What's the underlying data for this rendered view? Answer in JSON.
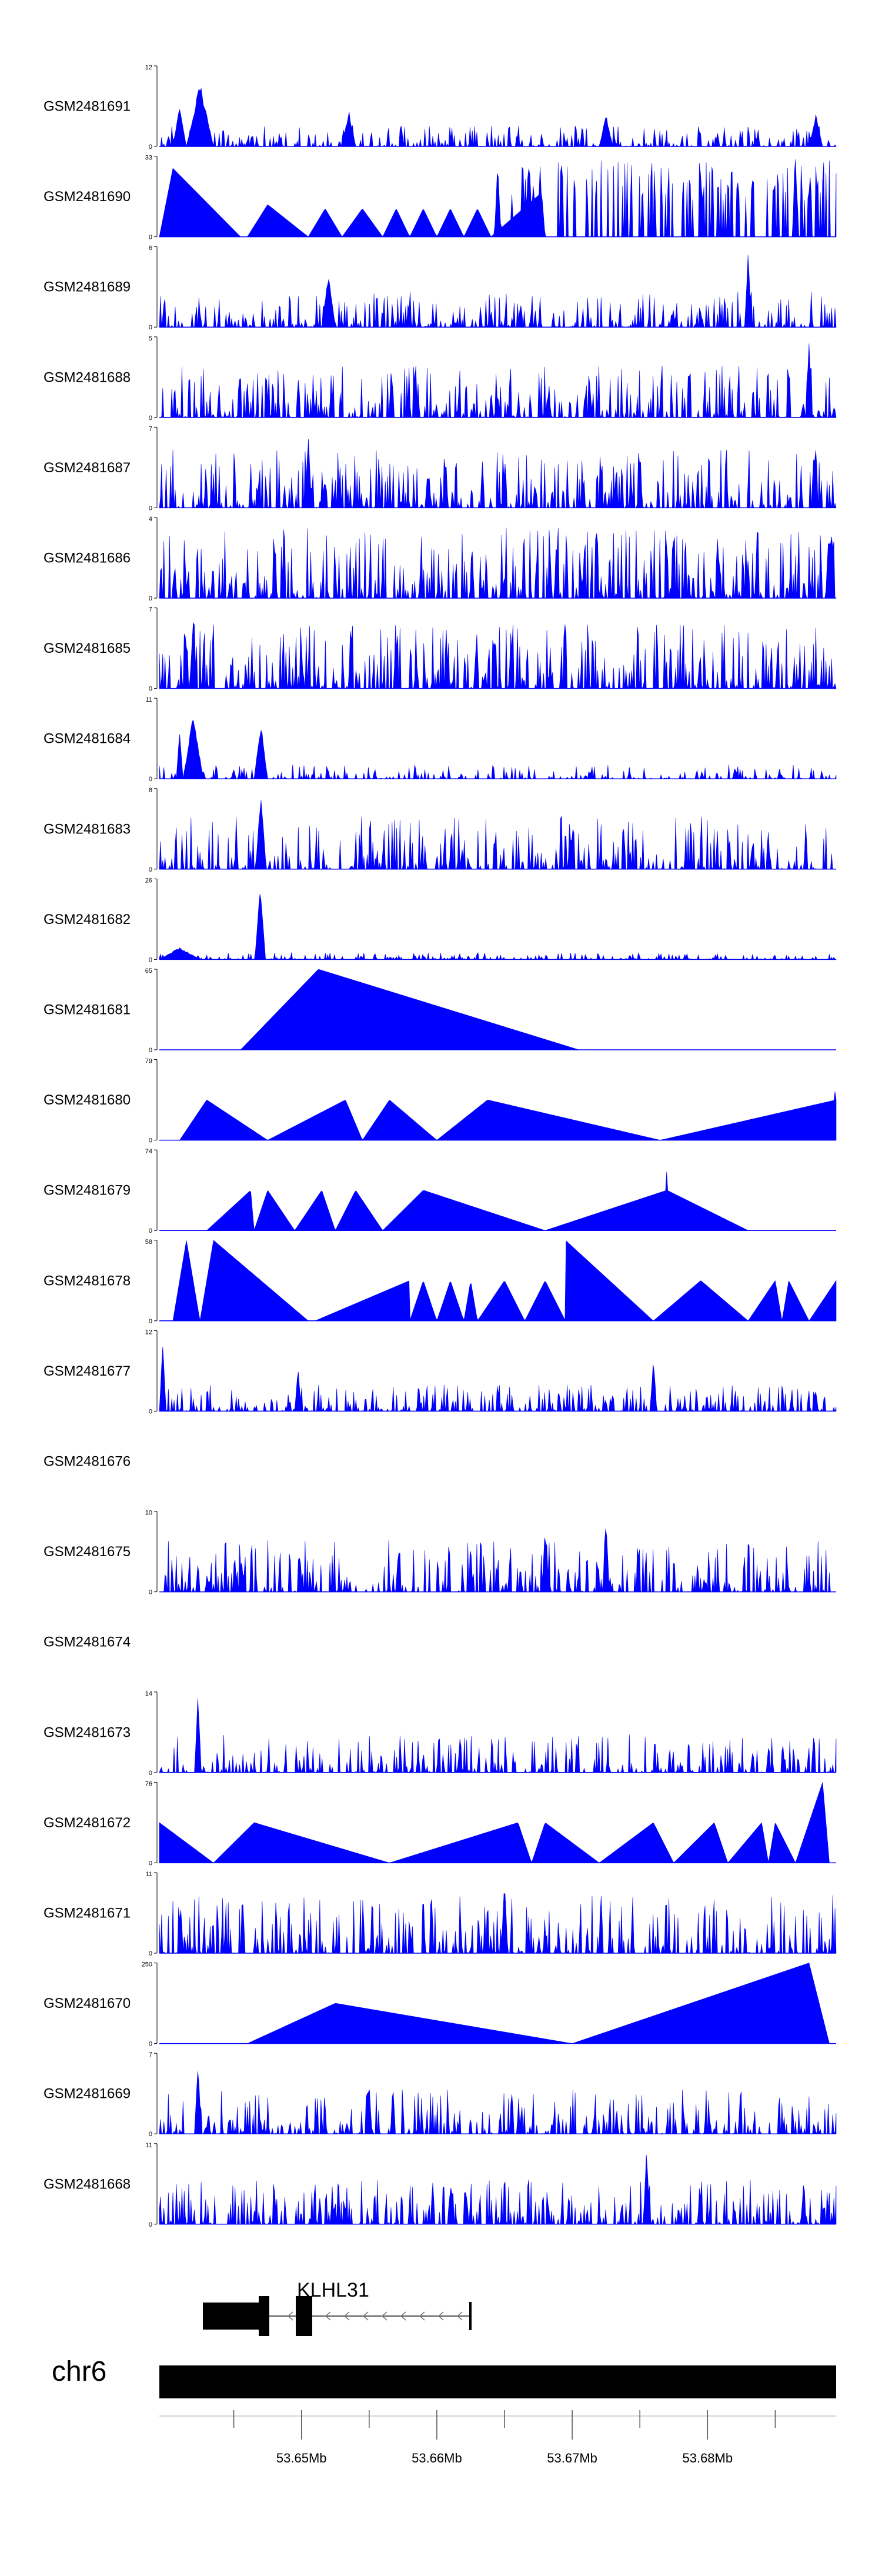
{
  "chart_data": {
    "type": "area",
    "title": "",
    "colors": {
      "signal": "#0000ff",
      "axis": "#000000",
      "gene": "#000000"
    },
    "tracks": [
      {
        "name": "GSM2481691",
        "ymax": "12",
        "ymin": "0",
        "style": "noise",
        "density": 0.55,
        "base": 0.12,
        "peaks": [
          [
            0.06,
            0.8,
            0.02
          ],
          [
            0.03,
            0.5,
            0.01
          ],
          [
            0.28,
            0.45,
            0.01
          ],
          [
            0.66,
            0.4,
            0.01
          ],
          [
            0.97,
            0.4,
            0.01
          ]
        ]
      },
      {
        "name": "GSM2481690",
        "ymax": "33",
        "ymin": "0",
        "style": "wedges",
        "wedges": [
          [
            0.0,
            0.12,
            0.02,
            0.85
          ],
          [
            0.13,
            0.22,
            0.16,
            0.4
          ],
          [
            0.22,
            0.27,
            0.245,
            0.35
          ],
          [
            0.27,
            0.33,
            0.3,
            0.35
          ],
          [
            0.33,
            0.37,
            0.35,
            0.35
          ],
          [
            0.37,
            0.41,
            0.39,
            0.35
          ],
          [
            0.41,
            0.45,
            0.43,
            0.35
          ],
          [
            0.45,
            0.49,
            0.47,
            0.35
          ],
          [
            0.49,
            0.57,
            0.565,
            0.55
          ]
        ],
        "noise_range": [
          0.5,
          1.0,
          0.45,
          0.95
        ],
        "peaks": [
          [
            0.5,
            1.0,
            0.005
          ],
          [
            0.94,
            1.0,
            0.005
          ]
        ]
      },
      {
        "name": "GSM2481689",
        "ymax": "6",
        "ymin": "0",
        "style": "noise",
        "density": 0.55,
        "base": 0.2,
        "peaks": [
          [
            0.87,
            1.0,
            0.005
          ],
          [
            0.25,
            0.7,
            0.01
          ]
        ]
      },
      {
        "name": "GSM2481688",
        "ymax": "5",
        "ymin": "0",
        "style": "spikes",
        "density": 0.5,
        "base": 0.4,
        "peaks": [
          [
            0.96,
            1.0,
            0.005
          ]
        ]
      },
      {
        "name": "GSM2481687",
        "ymax": "7",
        "ymin": "0",
        "style": "spikes",
        "density": 0.5,
        "base": 0.45,
        "peaks": [
          [
            0.22,
            1.0,
            0.005
          ]
        ]
      },
      {
        "name": "GSM2481686",
        "ymax": "4",
        "ymin": "0",
        "style": "spikes",
        "density": 0.55,
        "base": 0.55,
        "peaks": []
      },
      {
        "name": "GSM2481685",
        "ymax": "7",
        "ymin": "0",
        "style": "spikes",
        "density": 0.55,
        "base": 0.5,
        "peaks": [
          [
            0.05,
            0.95,
            0.005
          ]
        ]
      },
      {
        "name": "GSM2481684",
        "ymax": "11",
        "ymin": "0",
        "style": "noise",
        "density": 0.45,
        "base": 0.08,
        "peaks": [
          [
            0.05,
            0.8,
            0.015
          ],
          [
            0.15,
            0.7,
            0.01
          ],
          [
            0.03,
            0.6,
            0.005
          ]
        ]
      },
      {
        "name": "GSM2481683",
        "ymax": "8",
        "ymin": "0",
        "style": "noise",
        "density": 0.55,
        "base": 0.3,
        "peaks": [
          [
            0.15,
            0.95,
            0.008
          ]
        ]
      },
      {
        "name": "GSM2481682",
        "ymax": "26",
        "ymin": "0",
        "style": "noise",
        "density": 0.45,
        "base": 0.04,
        "peaks": [
          [
            0.149,
            0.95,
            0.008
          ],
          [
            0.03,
            0.15,
            0.03
          ]
        ]
      },
      {
        "name": "GSM2481681",
        "ymax": "65",
        "ymin": "0",
        "style": "wedges",
        "wedges": [
          [
            0.12,
            0.62,
            0.235,
            1.0
          ]
        ],
        "peaks": []
      },
      {
        "name": "GSM2481680",
        "ymax": "79",
        "ymin": "0",
        "style": "wedges",
        "wedges": [
          [
            0.03,
            0.16,
            0.07,
            0.5
          ],
          [
            0.16,
            0.3,
            0.275,
            0.5
          ],
          [
            0.3,
            0.41,
            0.34,
            0.5
          ],
          [
            0.41,
            0.74,
            0.485,
            0.5
          ],
          [
            0.74,
            1.0,
            1.0,
            0.5
          ]
        ],
        "peaks": [
          [
            0.999,
            1.0,
            0.002
          ]
        ]
      },
      {
        "name": "GSM2481679",
        "ymax": "74",
        "ymin": "0",
        "style": "wedges",
        "wedges": [
          [
            0.07,
            0.14,
            0.135,
            0.5
          ],
          [
            0.14,
            0.2,
            0.16,
            0.5
          ],
          [
            0.2,
            0.26,
            0.24,
            0.5
          ],
          [
            0.26,
            0.33,
            0.29,
            0.5
          ],
          [
            0.33,
            0.57,
            0.39,
            0.5
          ],
          [
            0.57,
            0.87,
            0.75,
            0.5
          ]
        ],
        "peaks": [
          [
            0.75,
            1.0,
            0.002
          ]
        ]
      },
      {
        "name": "GSM2481678",
        "ymax": "58",
        "ymin": "0",
        "style": "wedges",
        "wedges": [
          [
            0.02,
            0.06,
            0.04,
            1.0
          ],
          [
            0.06,
            0.22,
            0.08,
            1.0
          ],
          [
            0.23,
            0.37,
            0.37,
            0.5
          ],
          [
            0.37,
            0.41,
            0.39,
            0.5
          ],
          [
            0.41,
            0.45,
            0.43,
            0.5
          ],
          [
            0.45,
            0.47,
            0.46,
            0.5
          ],
          [
            0.47,
            0.54,
            0.51,
            0.5
          ],
          [
            0.54,
            0.6,
            0.57,
            0.5
          ],
          [
            0.6,
            0.73,
            0.6,
            1.0
          ],
          [
            0.73,
            0.87,
            0.8,
            0.5
          ],
          [
            0.87,
            0.92,
            0.91,
            0.5
          ],
          [
            0.92,
            0.96,
            0.93,
            0.5
          ],
          [
            0.96,
            1.0,
            1.0,
            0.5
          ]
        ],
        "peaks": []
      },
      {
        "name": "GSM2481677",
        "ymax": "12",
        "ymin": "0",
        "style": "noise",
        "density": 0.5,
        "base": 0.15,
        "peaks": [
          [
            0.205,
            0.55,
            0.005
          ],
          [
            0.73,
            0.7,
            0.005
          ],
          [
            0.005,
            0.9,
            0.005
          ]
        ]
      },
      {
        "name": "GSM2481676",
        "ymax": "",
        "ymin": "",
        "style": "empty",
        "peaks": []
      },
      {
        "name": "GSM2481675",
        "ymax": "10",
        "ymin": "0",
        "style": "spikes",
        "density": 0.45,
        "base": 0.4,
        "peaks": [
          [
            0.57,
            0.8,
            0.005
          ],
          [
            0.66,
            0.9,
            0.005
          ]
        ]
      },
      {
        "name": "GSM2481674",
        "ymax": "",
        "ymin": "",
        "style": "empty",
        "peaks": []
      },
      {
        "name": "GSM2481673",
        "ymax": "14",
        "ymin": "0",
        "style": "spikes",
        "density": 0.45,
        "base": 0.3,
        "peaks": [
          [
            0.057,
            1.0,
            0.005
          ]
        ]
      },
      {
        "name": "GSM2481672",
        "ymax": "76",
        "ymin": "0",
        "style": "wedges",
        "wedges": [
          [
            0.0,
            0.08,
            0.0,
            0.5
          ],
          [
            0.08,
            0.34,
            0.14,
            0.5
          ],
          [
            0.34,
            0.55,
            0.53,
            0.5
          ],
          [
            0.55,
            0.65,
            0.57,
            0.5
          ],
          [
            0.65,
            0.76,
            0.73,
            0.5
          ],
          [
            0.76,
            0.84,
            0.82,
            0.5
          ],
          [
            0.84,
            0.9,
            0.89,
            0.5
          ],
          [
            0.9,
            0.94,
            0.91,
            0.5
          ],
          [
            0.94,
            0.99,
            0.98,
            1.0
          ]
        ],
        "peaks": []
      },
      {
        "name": "GSM2481671",
        "ymax": "11",
        "ymin": "0",
        "style": "spikes",
        "density": 0.5,
        "base": 0.45,
        "peaks": [
          [
            0.51,
            0.95,
            0.005
          ]
        ]
      },
      {
        "name": "GSM2481670",
        "ymax": "250",
        "ymin": "0",
        "style": "wedges",
        "wedges": [
          [
            0.13,
            0.61,
            0.26,
            0.5
          ],
          [
            0.61,
            0.99,
            0.96,
            1.0
          ]
        ],
        "peaks": []
      },
      {
        "name": "GSM2481669",
        "ymax": "7",
        "ymin": "0",
        "style": "noise",
        "density": 0.55,
        "base": 0.25,
        "peaks": [
          [
            0.057,
            0.95,
            0.005
          ]
        ]
      },
      {
        "name": "GSM2481668",
        "ymax": "11",
        "ymin": "0",
        "style": "spikes",
        "density": 0.5,
        "base": 0.35,
        "peaks": [
          [
            0.72,
            1.0,
            0.005
          ]
        ]
      }
    ],
    "gene": {
      "name": "KLHL31",
      "strand": "-"
    },
    "chromosome": "chr6",
    "xlim": [
      53.6395,
      53.6895
    ],
    "ticks": [
      53.645,
      53.65,
      53.655,
      53.66,
      53.665,
      53.67,
      53.675,
      53.68,
      53.685
    ],
    "tick_labels": [
      "53.65Mb",
      "53.66Mb",
      "53.67Mb",
      "53.68Mb"
    ]
  }
}
